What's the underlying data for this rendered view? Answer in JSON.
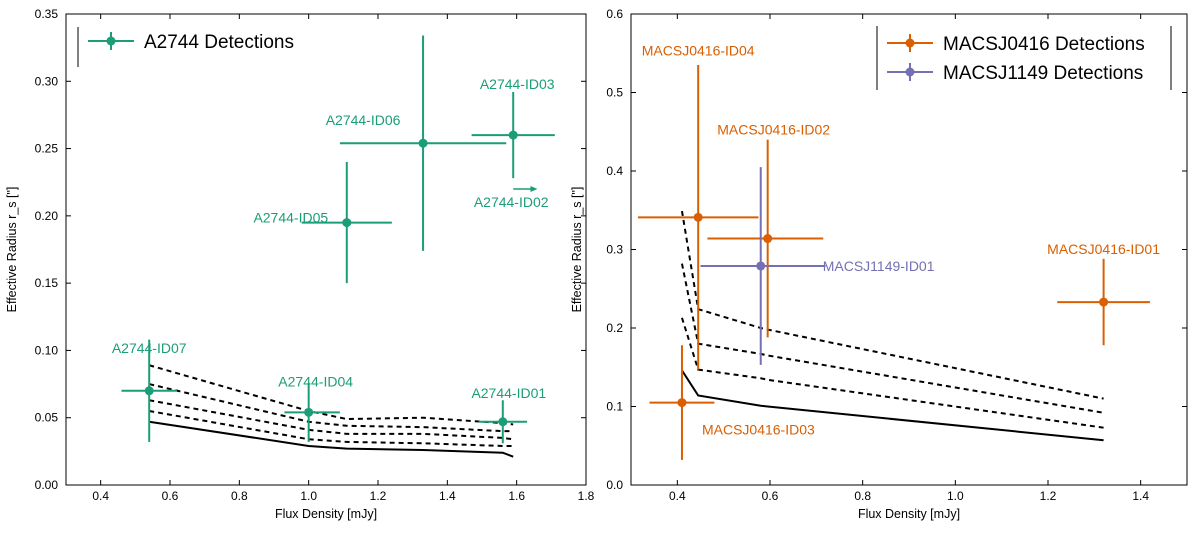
{
  "colors": {
    "a2744": "#1b9e77",
    "macs0416": "#d95f02",
    "macs1149": "#7570b3",
    "model": "#000000"
  },
  "chart_data": [
    {
      "type": "scatter",
      "id": "left",
      "xlabel": "Flux Density [mJy]",
      "ylabel": "Effective Radius r_s [\"]",
      "xlim": [
        0.3,
        1.8
      ],
      "ylim": [
        0.0,
        0.35
      ],
      "xticks": [
        0.4,
        0.6,
        0.8,
        1.0,
        1.2,
        1.4,
        1.6,
        1.8
      ],
      "xtick_labels": [
        "0.4",
        "0.6",
        "0.8",
        "1.0",
        "1.2",
        "1.4",
        "1.6",
        "1.8"
      ],
      "yticks": [
        0.0,
        0.05,
        0.1,
        0.15,
        0.2,
        0.25,
        0.3,
        0.35
      ],
      "ytick_labels": [
        "0.00",
        "0.05",
        "0.10",
        "0.15",
        "0.20",
        "0.25",
        "0.30",
        "0.35"
      ],
      "legend": [
        {
          "label": "A2744 Detections",
          "color_key": "a2744"
        }
      ],
      "legend_position": "top-left",
      "points": [
        {
          "label": "A2744-ID07",
          "x": 0.54,
          "y": 0.07,
          "xerr": [
            0.08,
            0.08
          ],
          "yerr": [
            0.038,
            0.038
          ],
          "color_key": "a2744"
        },
        {
          "label": "A2744-ID04",
          "x": 1.0,
          "y": 0.054,
          "xerr": [
            0.07,
            0.09
          ],
          "yerr": [
            0.022,
            0.022
          ],
          "color_key": "a2744"
        },
        {
          "label": "A2744-ID05",
          "x": 1.11,
          "y": 0.195,
          "xerr": [
            0.13,
            0.13
          ],
          "yerr": [
            0.045,
            0.045
          ],
          "color_key": "a2744"
        },
        {
          "label": "A2744-ID06",
          "x": 1.33,
          "y": 0.254,
          "xerr": [
            0.24,
            0.24
          ],
          "yerr": [
            0.08,
            0.08
          ],
          "color_key": "a2744"
        },
        {
          "label": "A2744-ID03",
          "x": 1.59,
          "y": 0.26,
          "xerr": [
            0.12,
            0.12
          ],
          "yerr": [
            0.032,
            0.032
          ],
          "color_key": "a2744"
        },
        {
          "label": "A2744-ID01",
          "x": 1.56,
          "y": 0.047,
          "xerr": [
            0.07,
            0.07
          ],
          "yerr": [
            0.016,
            0.016
          ],
          "color_key": "a2744"
        },
        {
          "label": "A2744-ID02",
          "type": "lower-limit-arrow",
          "x": 1.59,
          "y": 0.22,
          "x_to": 1.66,
          "color_key": "a2744"
        }
      ],
      "model_curves": [
        {
          "style": "solid",
          "x": [
            0.54,
            1.0,
            1.11,
            1.33,
            1.56,
            1.59
          ],
          "y": [
            0.047,
            0.029,
            0.027,
            0.026,
            0.024,
            0.021
          ]
        },
        {
          "style": "dashed",
          "x": [
            0.54,
            1.0,
            1.11,
            1.33,
            1.56,
            1.59
          ],
          "y": [
            0.055,
            0.034,
            0.032,
            0.031,
            0.029,
            0.029
          ]
        },
        {
          "style": "dashed",
          "x": [
            0.54,
            1.0,
            1.11,
            1.33,
            1.56,
            1.59
          ],
          "y": [
            0.063,
            0.041,
            0.038,
            0.038,
            0.035,
            0.034
          ]
        },
        {
          "style": "dashed",
          "x": [
            0.54,
            1.0,
            1.11,
            1.33,
            1.56,
            1.59
          ],
          "y": [
            0.075,
            0.047,
            0.044,
            0.043,
            0.04,
            0.04
          ]
        },
        {
          "style": "dashed",
          "x": [
            0.54,
            1.0,
            1.11,
            1.33,
            1.56,
            1.59
          ],
          "y": [
            0.089,
            0.055,
            0.049,
            0.05,
            0.046,
            0.045
          ]
        }
      ]
    },
    {
      "type": "scatter",
      "id": "right",
      "xlabel": "Flux Density [mJy]",
      "ylabel": "Effective Radius r_s [\"]",
      "xlim": [
        0.3,
        1.5
      ],
      "ylim": [
        0.0,
        0.6
      ],
      "xticks": [
        0.4,
        0.6,
        0.8,
        1.0,
        1.2,
        1.4
      ],
      "xtick_labels": [
        "0.4",
        "0.6",
        "0.8",
        "1.0",
        "1.2",
        "1.4"
      ],
      "yticks": [
        0.0,
        0.1,
        0.2,
        0.3,
        0.4,
        0.5,
        0.6
      ],
      "ytick_labels": [
        "0.0",
        "0.1",
        "0.2",
        "0.3",
        "0.4",
        "0.5",
        "0.6"
      ],
      "legend": [
        {
          "label": "MACSJ0416 Detections",
          "color_key": "macs0416"
        },
        {
          "label": "MACSJ1149 Detections",
          "color_key": "macs1149"
        }
      ],
      "legend_position": "top-right",
      "points": [
        {
          "label": "MACSJ0416-ID04",
          "x": 0.445,
          "y": 0.341,
          "xerr": [
            0.13,
            0.13
          ],
          "yerr": [
            0.194,
            0.194
          ],
          "color_key": "macs0416"
        },
        {
          "label": "MACSJ0416-ID02",
          "x": 0.595,
          "y": 0.314,
          "xerr": [
            0.13,
            0.12
          ],
          "yerr": [
            0.126,
            0.126
          ],
          "color_key": "macs0416"
        },
        {
          "label": "MACSJ1149-ID01",
          "x": 0.58,
          "y": 0.279,
          "xerr": [
            0.13,
            0.14
          ],
          "yerr": [
            0.126,
            0.126
          ],
          "color_key": "macs1149"
        },
        {
          "label": "MACSJ0416-ID01",
          "x": 1.32,
          "y": 0.233,
          "xerr": [
            0.1,
            0.1
          ],
          "yerr": [
            0.055,
            0.055
          ],
          "color_key": "macs0416"
        },
        {
          "label": "MACSJ0416-ID03",
          "x": 0.41,
          "y": 0.105,
          "xerr": [
            0.07,
            0.07
          ],
          "yerr": [
            0.073,
            0.073
          ],
          "color_key": "macs0416"
        }
      ],
      "model_curves": [
        {
          "style": "solid",
          "x": [
            0.41,
            0.445,
            0.58,
            0.595,
            1.32
          ],
          "y": [
            0.146,
            0.114,
            0.101,
            0.1,
            0.057
          ]
        },
        {
          "style": "dashed",
          "x": [
            0.41,
            0.445,
            0.58,
            0.595,
            1.32
          ],
          "y": [
            0.213,
            0.147,
            0.136,
            0.134,
            0.073
          ]
        },
        {
          "style": "dashed",
          "x": [
            0.41,
            0.445,
            0.58,
            0.595,
            1.32
          ],
          "y": [
            0.282,
            0.18,
            0.167,
            0.165,
            0.092
          ]
        },
        {
          "style": "dashed",
          "x": [
            0.41,
            0.445,
            0.58,
            0.595,
            1.32
          ],
          "y": [
            0.349,
            0.224,
            0.2,
            0.198,
            0.11
          ]
        }
      ]
    }
  ]
}
